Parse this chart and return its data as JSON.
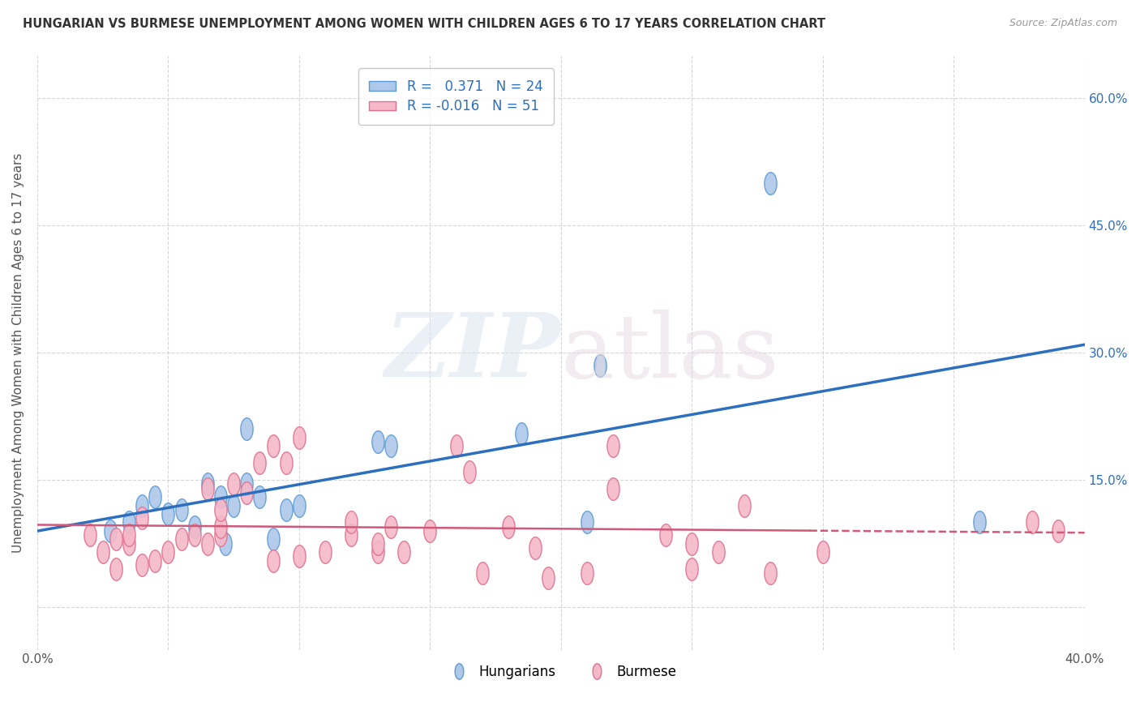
{
  "title": "HUNGARIAN VS BURMESE UNEMPLOYMENT AMONG WOMEN WITH CHILDREN AGES 6 TO 17 YEARS CORRELATION CHART",
  "source": "Source: ZipAtlas.com",
  "ylabel": "Unemployment Among Women with Children Ages 6 to 17 years",
  "xlim": [
    0.0,
    0.4
  ],
  "ylim": [
    -0.05,
    0.65
  ],
  "xticks": [
    0.0,
    0.05,
    0.1,
    0.15,
    0.2,
    0.25,
    0.3,
    0.35,
    0.4
  ],
  "xtick_labels": [
    "0.0%",
    "",
    "",
    "",
    "",
    "",
    "",
    "",
    "40.0%"
  ],
  "yticks": [
    0.0,
    0.15,
    0.3,
    0.45,
    0.6
  ],
  "ytick_left_labels": [
    "",
    "",
    "",
    "",
    ""
  ],
  "ytick_right_labels": [
    "",
    "15.0%",
    "30.0%",
    "45.0%",
    "60.0%"
  ],
  "hungarian_R": 0.371,
  "hungarian_N": 24,
  "burmese_R": -0.016,
  "burmese_N": 51,
  "hungarian_color": "#adc8e8",
  "hungarian_edge_color": "#5b9bd5",
  "burmese_color": "#f4b8c8",
  "burmese_edge_color": "#e07090",
  "hungarian_line_color": "#2d6fbf",
  "burmese_line_color": "#d05878",
  "background_color": "#ffffff",
  "grid_color": "#cccccc",
  "hungarian_x": [
    0.028,
    0.035,
    0.04,
    0.045,
    0.05,
    0.055,
    0.06,
    0.065,
    0.07,
    0.072,
    0.075,
    0.08,
    0.08,
    0.085,
    0.09,
    0.095,
    0.1,
    0.13,
    0.135,
    0.185,
    0.21,
    0.215,
    0.28,
    0.36
  ],
  "hungarian_y": [
    0.09,
    0.1,
    0.12,
    0.13,
    0.11,
    0.115,
    0.095,
    0.145,
    0.13,
    0.075,
    0.12,
    0.21,
    0.145,
    0.13,
    0.08,
    0.115,
    0.12,
    0.195,
    0.19,
    0.205,
    0.1,
    0.285,
    0.5,
    0.1
  ],
  "burmese_x": [
    0.02,
    0.025,
    0.03,
    0.03,
    0.035,
    0.035,
    0.04,
    0.04,
    0.045,
    0.05,
    0.055,
    0.06,
    0.065,
    0.065,
    0.07,
    0.07,
    0.07,
    0.075,
    0.08,
    0.085,
    0.09,
    0.09,
    0.095,
    0.1,
    0.1,
    0.11,
    0.12,
    0.12,
    0.13,
    0.13,
    0.135,
    0.14,
    0.15,
    0.16,
    0.165,
    0.17,
    0.18,
    0.19,
    0.195,
    0.21,
    0.22,
    0.22,
    0.24,
    0.25,
    0.25,
    0.26,
    0.27,
    0.28,
    0.3,
    0.38,
    0.39
  ],
  "burmese_y": [
    0.085,
    0.065,
    0.045,
    0.08,
    0.075,
    0.085,
    0.05,
    0.105,
    0.055,
    0.065,
    0.08,
    0.085,
    0.075,
    0.14,
    0.085,
    0.095,
    0.115,
    0.145,
    0.135,
    0.17,
    0.055,
    0.19,
    0.17,
    0.2,
    0.06,
    0.065,
    0.085,
    0.1,
    0.065,
    0.075,
    0.095,
    0.065,
    0.09,
    0.19,
    0.16,
    0.04,
    0.095,
    0.07,
    0.035,
    0.04,
    0.19,
    0.14,
    0.085,
    0.075,
    0.045,
    0.065,
    0.12,
    0.04,
    0.065,
    0.1,
    0.09
  ]
}
